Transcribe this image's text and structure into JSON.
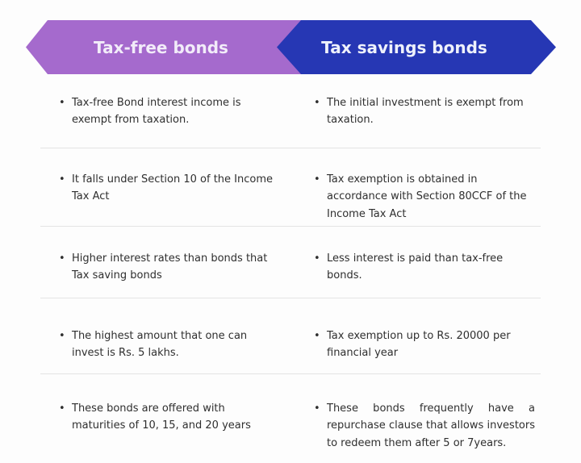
{
  "page": {
    "background": "#fdfdfd"
  },
  "header": {
    "left": {
      "label": "Tax-free bonds",
      "color": "#a56acd",
      "text_color": "#f2ecf9"
    },
    "right": {
      "label": "Tax savings bonds",
      "color": "#2637b4",
      "text_color": "#eef1fb"
    }
  },
  "comparison": {
    "divider_color": "#e4e4e4",
    "text_color": "#2f2f2f",
    "rows": [
      {
        "left": "Tax-free Bond interest income is exempt from taxation.",
        "right": "The initial investment is exempt from taxation."
      },
      {
        "left": "It falls under Section 10 of the Income Tax Act",
        "right": "Tax exemption is obtained in accordance with Section 80CCF of the Income Tax Act"
      },
      {
        "left": "Higher interest rates than bonds that Tax saving bonds",
        "right": "Less interest is paid than tax-free bonds."
      },
      {
        "left": "The highest amount that one can invest is Rs. 5 lakhs.",
        "right": "Tax exemption up to Rs. 20000 per financial year"
      },
      {
        "left": "These bonds are offered with maturities of 10, 15, and 20 years",
        "right": "These bonds frequently have a repurchase clause that allows investors to redeem them after 5 or 7years."
      }
    ]
  }
}
